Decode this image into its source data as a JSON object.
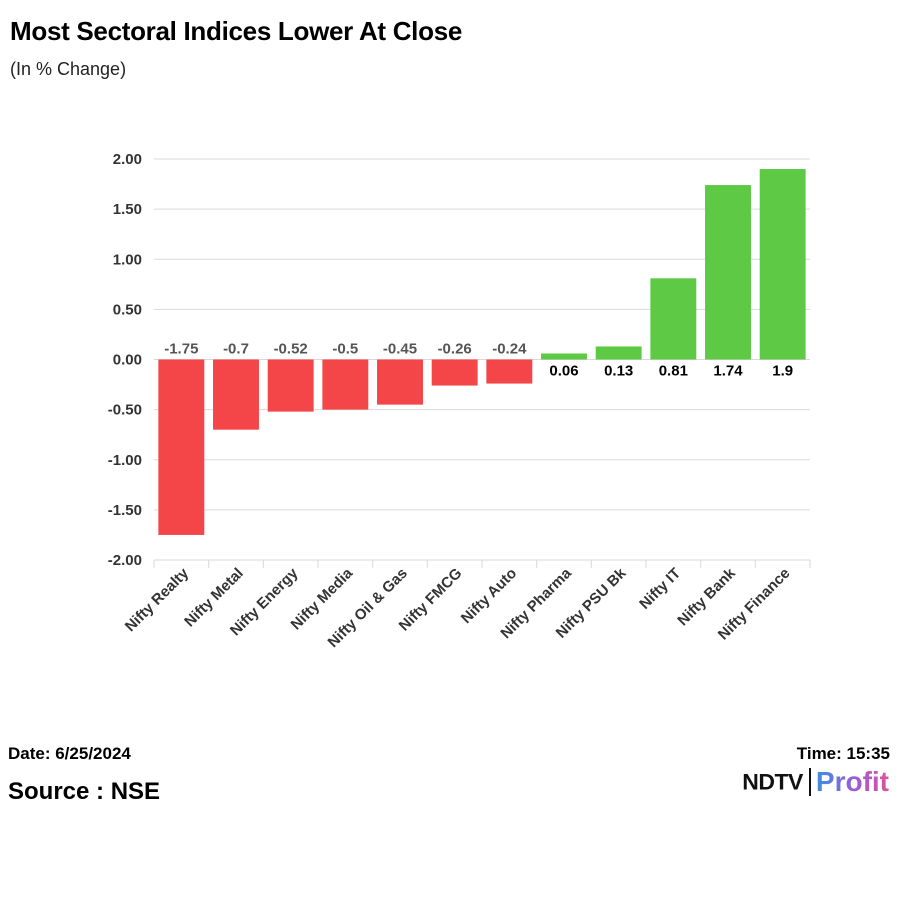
{
  "header": {
    "title": "Most Sectoral Indices Lower At Close",
    "subtitle": "(In % Change)"
  },
  "footer": {
    "date": "Date: 6/25/2024",
    "source": "Source : NSE",
    "time": "Time: 15:35",
    "logo_left": "NDTV",
    "logo_right": "Profit"
  },
  "colors": {
    "negative": "#f44548",
    "positive": "#5ec944",
    "grid": "#d9d9d9",
    "tick_text": "#333333",
    "negative_label": "#555555",
    "positive_label": "#000000"
  },
  "chart_data": {
    "type": "bar",
    "categories": [
      "Nifty Realty",
      "Nifty Metal",
      "Nifty Energy",
      "Nifty Media",
      "Nifty Oil & Gas",
      "Nifty FMCG",
      "Nifty Auto",
      "Nifty Pharma",
      "Nifty PSU Bk",
      "Nifty IT",
      "Nifty Bank",
      "Nifty Finance"
    ],
    "values": [
      -1.75,
      -0.7,
      -0.52,
      -0.5,
      -0.45,
      -0.26,
      -0.24,
      0.06,
      0.13,
      0.81,
      1.74,
      1.9
    ],
    "data_labels": [
      "-1.75",
      "-0.7",
      "-0.52",
      "-0.5",
      "-0.45",
      "-0.26",
      "-0.24",
      "0.06",
      "0.13",
      "0.81",
      "1.74",
      "1.9"
    ],
    "yticks": [
      "2.00",
      "1.50",
      "1.00",
      "0.50",
      "0.00",
      "-0.50",
      "-1.00",
      "-1.50",
      "-2.00"
    ],
    "ytick_values": [
      2,
      1.5,
      1,
      0.5,
      0,
      -0.5,
      -1,
      -1.5,
      -2
    ],
    "ylim": [
      -2,
      2
    ],
    "xlabel": "",
    "ylabel": "",
    "grid": true,
    "legend": "none"
  }
}
